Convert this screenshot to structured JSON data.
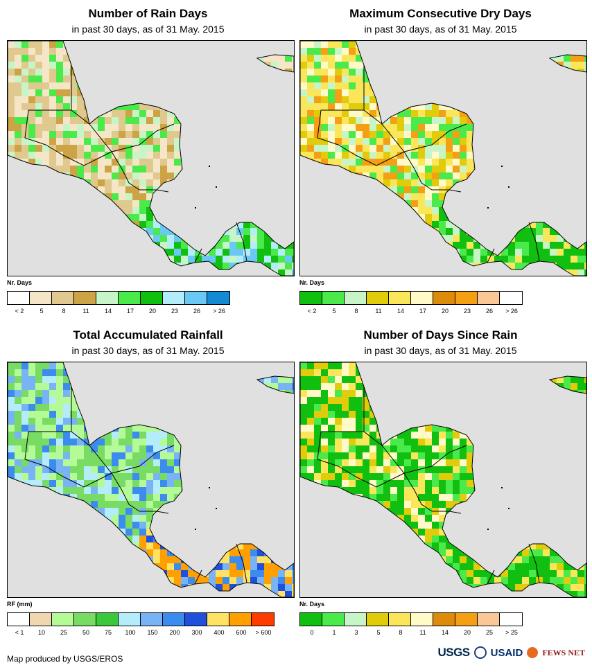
{
  "panels": [
    {
      "id": "rain-days",
      "title": "Number of Rain Days",
      "subtitle": "in past 30 days, as of 31 May. 2015",
      "legend_title": "Nr. Days",
      "legend_colors": [
        "#ffffff",
        "#f5e6c8",
        "#e0c98e",
        "#cda445",
        "#c8f5c8",
        "#4bea4b",
        "#11bf11",
        "#b4ecfa",
        "#6ac8f5",
        "#1489d4"
      ],
      "legend_ticks": [
        "< 2",
        "5",
        "8",
        "11",
        "14",
        "17",
        "20",
        "23",
        "26",
        "> 26"
      ],
      "land_palette": [
        "#f5e6c8",
        "#e0c98e",
        "#cda445",
        "#f5e6c8",
        "#e0c98e",
        "#c8f5c8",
        "#4bea4b"
      ],
      "south_palette": [
        "#11bf11",
        "#4bea4b",
        "#11bf11",
        "#b4ecfa",
        "#6ac8f5",
        "#c8f5c8"
      ]
    },
    {
      "id": "dry-days",
      "title": "Maximum Consecutive Dry Days",
      "subtitle": "in past 30 days, as of 31 May. 2015",
      "legend_title": "Nr. Days",
      "legend_colors": [
        "#11bf11",
        "#4bea4b",
        "#c8f5c8",
        "#e0cc0a",
        "#fae65a",
        "#fffac8",
        "#dc8c0a",
        "#f5a014",
        "#fac896",
        "#ffffff"
      ],
      "legend_ticks": [
        "< 2",
        "5",
        "8",
        "11",
        "14",
        "17",
        "20",
        "23",
        "26",
        "> 26"
      ],
      "land_palette": [
        "#fae65a",
        "#fffac8",
        "#c8f5c8",
        "#e0cc0a",
        "#fae65a",
        "#4bea4b",
        "#f5a014"
      ],
      "south_palette": [
        "#11bf11",
        "#4bea4b",
        "#11bf11",
        "#c8f5c8",
        "#11bf11",
        "#fae65a"
      ]
    },
    {
      "id": "rainfall",
      "title": "Total Accumulated Rainfall",
      "subtitle": "in past 30 days, as of 31 May. 2015",
      "legend_title": "RF (mm)",
      "legend_colors": [
        "#ffffff",
        "#f0d7af",
        "#b4fa96",
        "#78dc64",
        "#3cc83c",
        "#b4ecfa",
        "#78b4f5",
        "#3c8cf0",
        "#1e50dc",
        "#ffe164",
        "#ffa000",
        "#ff3c00"
      ],
      "legend_ticks": [
        "< 1",
        "10",
        "25",
        "50",
        "75",
        "100",
        "150",
        "200",
        "300",
        "400",
        "600",
        "> 600"
      ],
      "land_palette": [
        "#b4fa96",
        "#78dc64",
        "#b4fa96",
        "#b4ecfa",
        "#78b4f5",
        "#78dc64",
        "#3c8cf0"
      ],
      "south_palette": [
        "#ffa000",
        "#3c8cf0",
        "#1e50dc",
        "#ffe164",
        "#ffa000",
        "#78b4f5"
      ]
    },
    {
      "id": "days-since-rain",
      "title": "Number of Days Since Rain",
      "subtitle": "in past 30 days, as of 31 May. 2015",
      "legend_title": "Nr. Days",
      "legend_colors": [
        "#11bf11",
        "#4bea4b",
        "#c8f5c8",
        "#e0cc0a",
        "#fae65a",
        "#fffac8",
        "#dc8c0a",
        "#f5a014",
        "#fac896",
        "#ffffff"
      ],
      "legend_ticks": [
        "0",
        "1",
        "3",
        "5",
        "8",
        "11",
        "14",
        "20",
        "25",
        "> 25"
      ],
      "land_palette": [
        "#11bf11",
        "#11bf11",
        "#4bea4b",
        "#fae65a",
        "#e0cc0a",
        "#11bf11",
        "#fffac8"
      ],
      "south_palette": [
        "#11bf11",
        "#4bea4b",
        "#11bf11",
        "#e0cc0a",
        "#11bf11",
        "#fae65a"
      ]
    }
  ],
  "ocean_color": "#e0e0e0",
  "footer": {
    "credit": "Map produced by USGS/EROS",
    "logo_usgs": "USGS",
    "logo_usaid": "USAID",
    "logo_fews": "FEWS NET"
  }
}
